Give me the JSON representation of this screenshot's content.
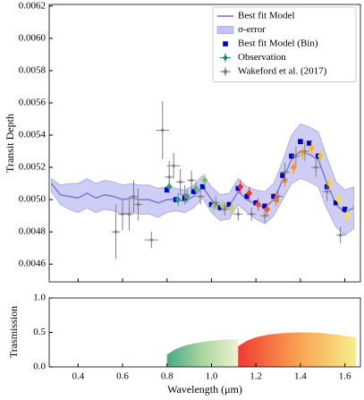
{
  "chart_data": [
    {
      "type": "line",
      "ylabel": "Transit Depth",
      "xlim": [
        0.27,
        1.67
      ],
      "ylim": [
        0.00449,
        0.00621
      ],
      "xticks": [
        0.4,
        0.6,
        0.8,
        {
          "value": 1.0,
          "label": "1.0"
        },
        1.2,
        1.4,
        1.6
      ],
      "yticks": [
        0.0046,
        0.0048,
        {
          "value": 0.005,
          "label": "0.0050"
        },
        0.0052,
        0.0054,
        0.0056,
        0.0058,
        {
          "value": 0.006,
          "label": "0.0060"
        },
        0.0062
      ],
      "legend": "upper right",
      "series": [
        {
          "name": "Best fit Model",
          "type": "line",
          "color": "#6f6fd8",
          "x": [
            0.28,
            0.32,
            0.36,
            0.4,
            0.44,
            0.48,
            0.52,
            0.56,
            0.6,
            0.64,
            0.68,
            0.72,
            0.76,
            0.8,
            0.84,
            0.88,
            0.92,
            0.96,
            1.0,
            1.04,
            1.08,
            1.12,
            1.16,
            1.2,
            1.24,
            1.28,
            1.32,
            1.36,
            1.4,
            1.44,
            1.48,
            1.52,
            1.56,
            1.6,
            1.64
          ],
          "values": [
            0.0051,
            0.00503,
            0.00502,
            0.00501,
            0.00504,
            0.00501,
            0.00503,
            0.00502,
            0.005,
            0.00501,
            0.005,
            0.005,
            0.00498,
            0.005,
            0.005,
            0.00499,
            0.00502,
            0.00508,
            0.005,
            0.00495,
            0.00496,
            0.00505,
            0.005,
            0.00497,
            0.00495,
            0.005,
            0.00512,
            0.00525,
            0.0053,
            0.00528,
            0.00525,
            0.0051,
            0.00497,
            0.00492,
            0.00495
          ]
        },
        {
          "name": "σ-error",
          "type": "band",
          "color": "#c4c4f4",
          "x": [
            0.28,
            0.32,
            0.36,
            0.4,
            0.44,
            0.48,
            0.52,
            0.56,
            0.6,
            0.64,
            0.68,
            0.72,
            0.76,
            0.8,
            0.84,
            0.88,
            0.92,
            0.96,
            1.0,
            1.04,
            1.08,
            1.12,
            1.16,
            1.2,
            1.24,
            1.28,
            1.32,
            1.36,
            1.4,
            1.44,
            1.48,
            1.52,
            1.56,
            1.6,
            1.64
          ],
          "lower": [
            0.00505,
            0.00497,
            0.00494,
            0.00492,
            0.00495,
            0.00492,
            0.00494,
            0.00493,
            0.00491,
            0.00492,
            0.00491,
            0.00491,
            0.00489,
            0.00492,
            0.00493,
            0.00492,
            0.00495,
            0.00501,
            0.00492,
            0.00487,
            0.00488,
            0.00497,
            0.00492,
            0.00488,
            0.00485,
            0.0049,
            0.005,
            0.0051,
            0.00513,
            0.00511,
            0.00508,
            0.00494,
            0.00483,
            0.00478,
            0.00482
          ],
          "upper": [
            0.00513,
            0.00509,
            0.0051,
            0.0051,
            0.00513,
            0.0051,
            0.00512,
            0.00511,
            0.00509,
            0.0051,
            0.00509,
            0.00509,
            0.00507,
            0.00508,
            0.00507,
            0.00506,
            0.00509,
            0.00515,
            0.00508,
            0.00503,
            0.00504,
            0.00513,
            0.00508,
            0.00506,
            0.00505,
            0.0051,
            0.00524,
            0.0054,
            0.00547,
            0.00545,
            0.00542,
            0.00526,
            0.00511,
            0.00506,
            0.00508
          ]
        },
        {
          "name": "Best fit Model (Bin)",
          "type": "scatter",
          "color": "#0000cc",
          "x": [
            0.8,
            0.84,
            0.88,
            0.92,
            0.96,
            1.0,
            1.04,
            1.08,
            1.12,
            1.16,
            1.2,
            1.24,
            1.28,
            1.32,
            1.36,
            1.4,
            1.44,
            1.48,
            1.52,
            1.56,
            1.6
          ],
          "values": [
            0.00506,
            0.005,
            0.00501,
            0.00505,
            0.00508,
            0.00497,
            0.00495,
            0.00497,
            0.00507,
            0.00502,
            0.00498,
            0.00496,
            0.00502,
            0.00515,
            0.00527,
            0.00536,
            0.00535,
            0.00527,
            0.00508,
            0.00498,
            0.00494
          ]
        },
        {
          "name": "Observation",
          "type": "errorbar",
          "color": "#1b8a6b",
          "colors": [
            "#1b9e77",
            "#2aa37a",
            "#3aaa78",
            "#55b470",
            "#78be66",
            "#99c65c",
            "#b3cc52",
            "#c8d04a",
            "#e8322a",
            "#ea3f27",
            "#ec5024",
            "#ef6221",
            "#f2731f",
            "#f5851d",
            "#f7961b",
            "#f9a81a",
            "#fbb918",
            "#fcc71a",
            "#fdd31e",
            "#fde027",
            "#fbe733"
          ],
          "x": [
            0.81,
            0.85,
            0.89,
            0.93,
            0.97,
            1.01,
            1.05,
            1.09,
            1.13,
            1.17,
            1.21,
            1.25,
            1.29,
            1.33,
            1.37,
            1.41,
            1.45,
            1.49,
            1.53,
            1.57,
            1.61
          ],
          "values": [
            0.00508,
            0.005,
            0.00502,
            0.00507,
            0.00512,
            0.00496,
            0.00496,
            0.00495,
            0.00508,
            0.00504,
            0.00497,
            0.00494,
            0.005,
            0.00512,
            0.0052,
            0.00529,
            0.00532,
            0.00527,
            0.0051,
            0.005,
            0.0049
          ],
          "yerr": [
            4e-05,
            4e-05,
            4e-05,
            4e-05,
            4e-05,
            4e-05,
            4e-05,
            4e-05,
            4e-05,
            4e-05,
            4e-05,
            4e-05,
            4e-05,
            4e-05,
            4e-05,
            4e-05,
            4e-05,
            4e-05,
            4e-05,
            4e-05,
            4e-05
          ]
        },
        {
          "name": "Wakeford et al. (2017)",
          "type": "errorbar",
          "color": "#808080",
          "x": [
            0.57,
            0.6,
            0.63,
            0.65,
            0.67,
            0.73,
            0.78,
            0.81,
            0.83,
            0.86,
            0.88,
            0.91,
            0.95,
            1.02,
            1.06,
            1.12,
            1.18,
            1.24,
            1.3,
            1.33,
            1.38,
            1.42,
            1.47,
            1.52,
            1.58
          ],
          "values": [
            0.0048,
            0.00491,
            0.00491,
            0.00502,
            0.00497,
            0.00475,
            0.00543,
            0.00514,
            0.00521,
            0.00511,
            0.00503,
            0.00512,
            0.00502,
            0.00498,
            0.00494,
            0.00491,
            0.00491,
            0.0049,
            0.00502,
            0.00517,
            0.00527,
            0.0053,
            0.0052,
            0.00505,
            0.00478
          ],
          "xerr": [
            0.02,
            0.02,
            0.02,
            0.02,
            0.02,
            0.03,
            0.03,
            0.02,
            0.03,
            0.02,
            0.02,
            0.02,
            0.02,
            0.02,
            0.02,
            0.02,
            0.02,
            0.02,
            0.02,
            0.02,
            0.02,
            0.02,
            0.02,
            0.02,
            0.02
          ],
          "yerr": [
            0.00017,
            0.0001,
            0.0001,
            0.0001,
            0.0001,
            5e-05,
            0.00018,
            0.0001,
            8e-05,
            8e-05,
            6e-05,
            6e-05,
            5e-05,
            4e-05,
            4e-05,
            4e-05,
            4e-05,
            4e-05,
            4e-05,
            6e-05,
            6e-05,
            6e-05,
            6e-05,
            6e-05,
            5e-05
          ]
        }
      ]
    },
    {
      "type": "area",
      "xlabel": "Wavelength (μm)",
      "ylabel": "Trasmission",
      "xlim": [
        0.27,
        1.67
      ],
      "ylim": [
        0,
        1
      ],
      "xticks": [
        0.4,
        0.6,
        0.8,
        {
          "value": 1.0,
          "label": "1.0"
        },
        1.2,
        1.4,
        1.6
      ],
      "yticks": [
        {
          "value": 0,
          "label": "0.0"
        },
        0.5,
        {
          "value": 1,
          "label": "1.0"
        }
      ],
      "series": [
        {
          "colors": [
            "#4aa886",
            "#a9d6a0",
            "#eef1d0"
          ],
          "x": [
            0.8,
            0.84,
            0.88,
            0.92,
            0.96,
            1.0,
            1.04,
            1.08,
            1.12
          ],
          "values": [
            0.18,
            0.26,
            0.31,
            0.34,
            0.36,
            0.38,
            0.39,
            0.4,
            0.4
          ]
        },
        {
          "colors": [
            "#f03a32",
            "#f8a050",
            "#f6ee8a"
          ],
          "x": [
            1.12,
            1.16,
            1.2,
            1.26,
            1.32,
            1.38,
            1.44,
            1.5,
            1.56,
            1.62,
            1.65
          ],
          "values": [
            0.3,
            0.38,
            0.43,
            0.47,
            0.49,
            0.5,
            0.5,
            0.49,
            0.47,
            0.44,
            0.43
          ]
        }
      ]
    }
  ]
}
